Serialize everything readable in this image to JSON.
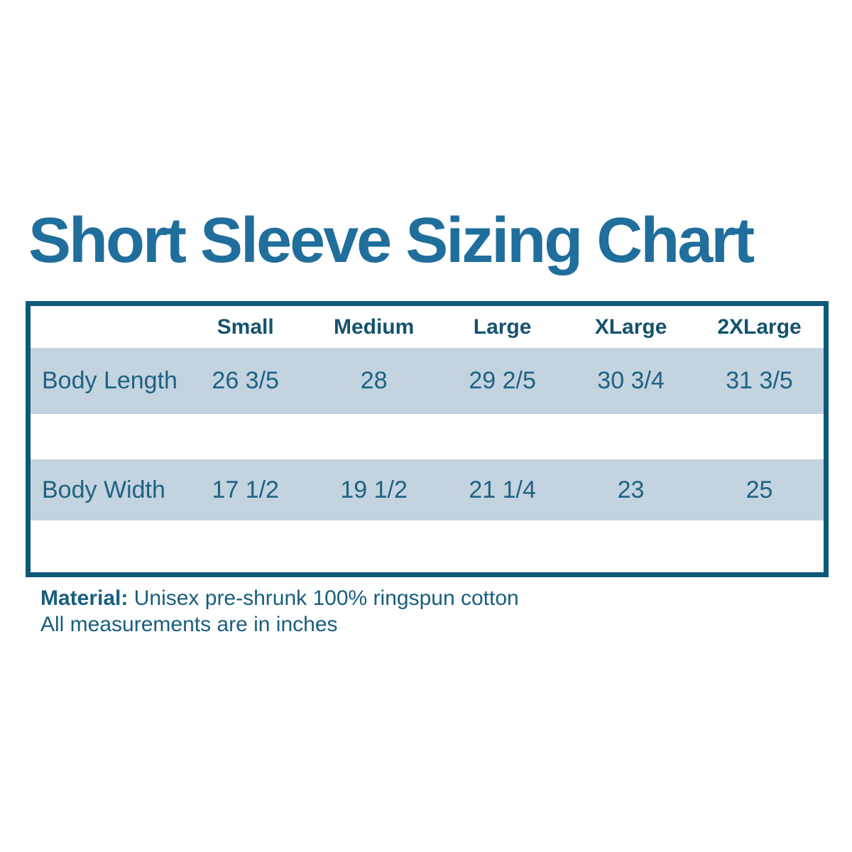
{
  "title": "Short Sleeve Sizing Chart",
  "chart_data": {
    "type": "table",
    "title": "Short Sleeve Sizing Chart",
    "columns": [
      "Small",
      "Medium",
      "Large",
      "XLarge",
      "2XLarge"
    ],
    "rows": [
      {
        "label": "Body Length",
        "values": [
          "26 3/5",
          "28",
          "29 2/5",
          "30 3/4",
          "31 3/5"
        ]
      },
      {
        "label": "Body Width",
        "values": [
          "17 1/2",
          "19 1/2",
          "21 1/4",
          "23",
          "25"
        ]
      }
    ],
    "units": "inches",
    "layout": {
      "header_background": "#ffffff",
      "row_background": "#C3D3DF",
      "border_color": "#0E5878",
      "grid": "off"
    }
  },
  "footer": {
    "material_label": "Material:",
    "material_text": "Unisex pre-shrunk 100% ringspun cotton",
    "note": "All measurements are in inches"
  },
  "colors": {
    "title_text": "#1F6E9C",
    "header_text": "#14536E",
    "cell_text": "#1E6283",
    "table_border": "#0E5878",
    "row_highlight": "#C3D3DF",
    "background": "#ffffff"
  }
}
